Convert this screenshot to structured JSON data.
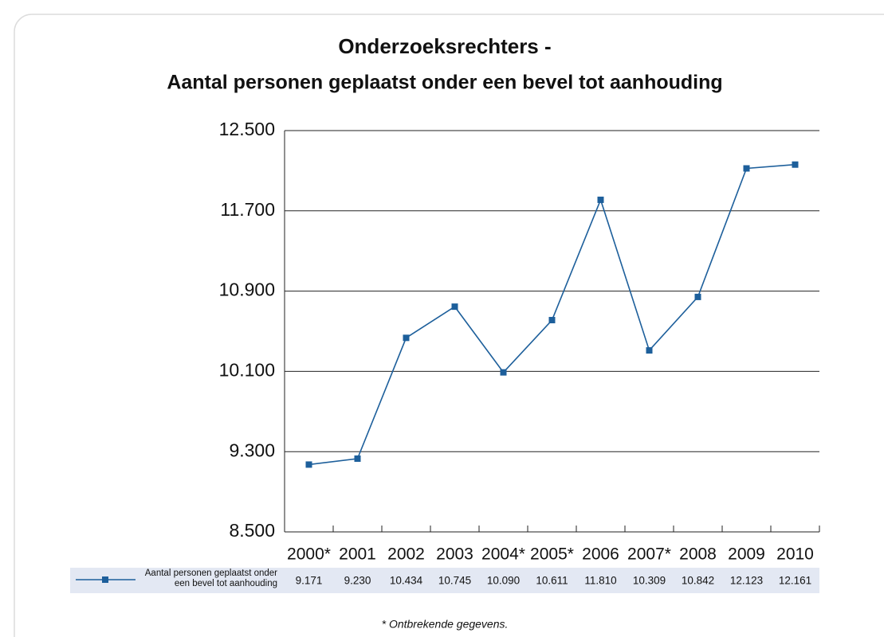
{
  "chart_data": {
    "type": "line",
    "title": [
      "Onderzoeksrechters -",
      "Aantal personen geplaatst onder een bevel tot aanhouding"
    ],
    "categories": [
      "2000*",
      "2001",
      "2002",
      "2003",
      "2004*",
      "2005*",
      "2006",
      "2007*",
      "2008",
      "2009",
      "2010"
    ],
    "series": [
      {
        "name": "Aantal personen geplaatst onder een bevel tot aanhouding",
        "color": "#1d5f9b",
        "values": [
          9171,
          9230,
          10434,
          10745,
          10090,
          10611,
          11810,
          10309,
          10842,
          12123,
          12161
        ],
        "value_labels": [
          "9.171",
          "9.230",
          "10.434",
          "10.745",
          "10.090",
          "10.611",
          "11.810",
          "10.309",
          "10.842",
          "12.123",
          "12.161"
        ]
      }
    ],
    "ylim": [
      8500,
      12500
    ],
    "yticks": [
      {
        "value": 8500,
        "label": "8.500"
      },
      {
        "value": 9300,
        "label": "9.300"
      },
      {
        "value": 10100,
        "label": "10.100"
      },
      {
        "value": 10900,
        "label": "10.900"
      },
      {
        "value": 11700,
        "label": "11.700"
      },
      {
        "value": 12500,
        "label": "12.500"
      }
    ],
    "grid": true,
    "footnote": "* Ontbrekende gegevens."
  }
}
